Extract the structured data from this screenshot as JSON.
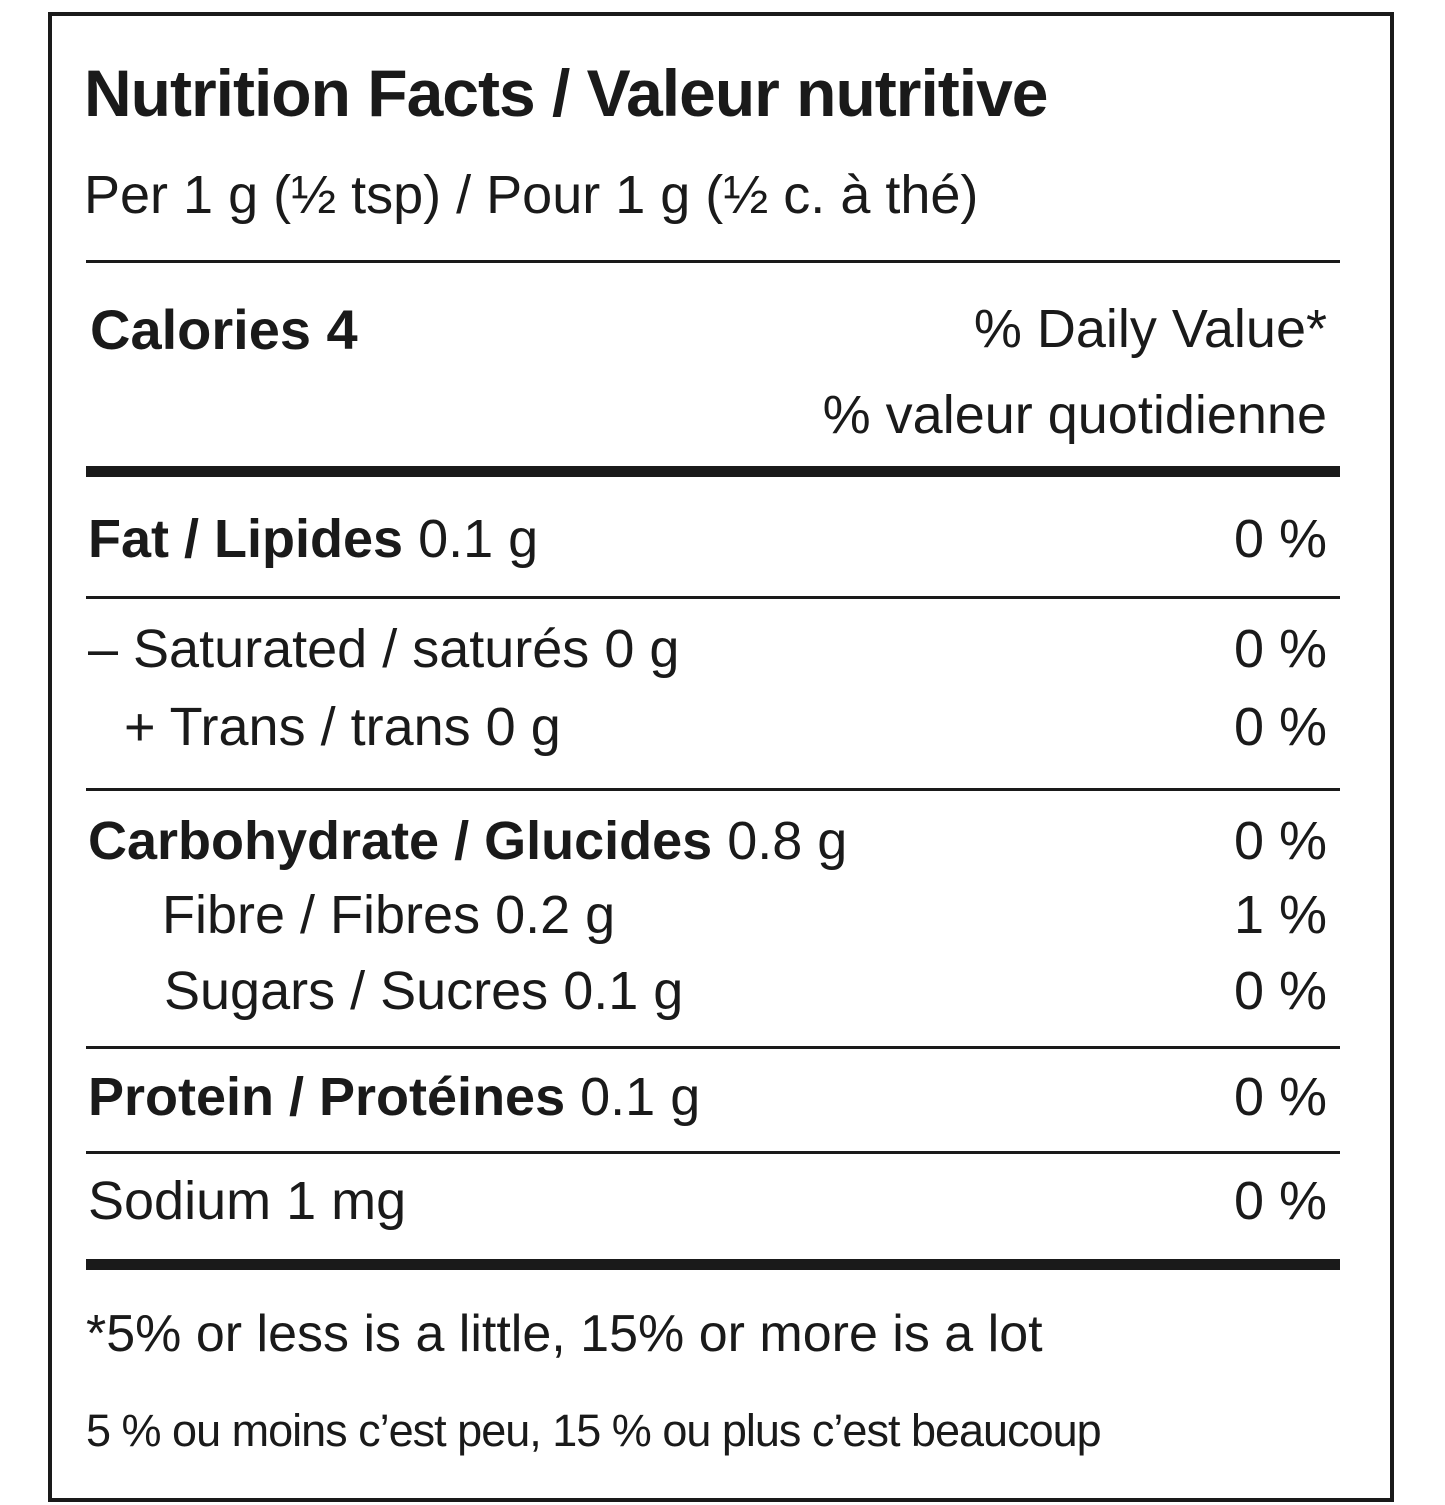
{
  "header": {
    "title": "Nutrition Facts / Valeur nutritive",
    "serving": "Per 1 g (½ tsp) / Pour 1 g (½ c. à thé)"
  },
  "calories": "Calories 4",
  "daily_value_header": {
    "en": "% Daily Value*",
    "fr": "% valeur quotidienne"
  },
  "rows": [
    {
      "label": "Fat / Lipides",
      "amount": "0.1 g",
      "dv": "0 %"
    },
    {
      "label": "– Saturated / saturés",
      "amount": "0 g",
      "dv": "0 %"
    },
    {
      "label": "+ Trans / trans",
      "amount": "0 g",
      "dv": "0 %"
    },
    {
      "label": "Carbohydrate / Glucides",
      "amount": "0.8 g",
      "dv": "0 %"
    },
    {
      "label": "Fibre / Fibres",
      "amount": "0.2 g",
      "dv": "1 %"
    },
    {
      "label": "Sugars / Sucres",
      "amount": "0.1 g",
      "dv": "0 %"
    },
    {
      "label": "Protein / Protéines",
      "amount": "0.1 g",
      "dv": "0 %"
    },
    {
      "label": "Sodium",
      "amount": "1 mg",
      "dv": "0 %"
    }
  ],
  "footnote": {
    "en": "*5% or less is a little, 15% or more is a lot",
    "fr": "5 % ou moins c’est peu, 15 % ou plus c’est beaucoup"
  }
}
